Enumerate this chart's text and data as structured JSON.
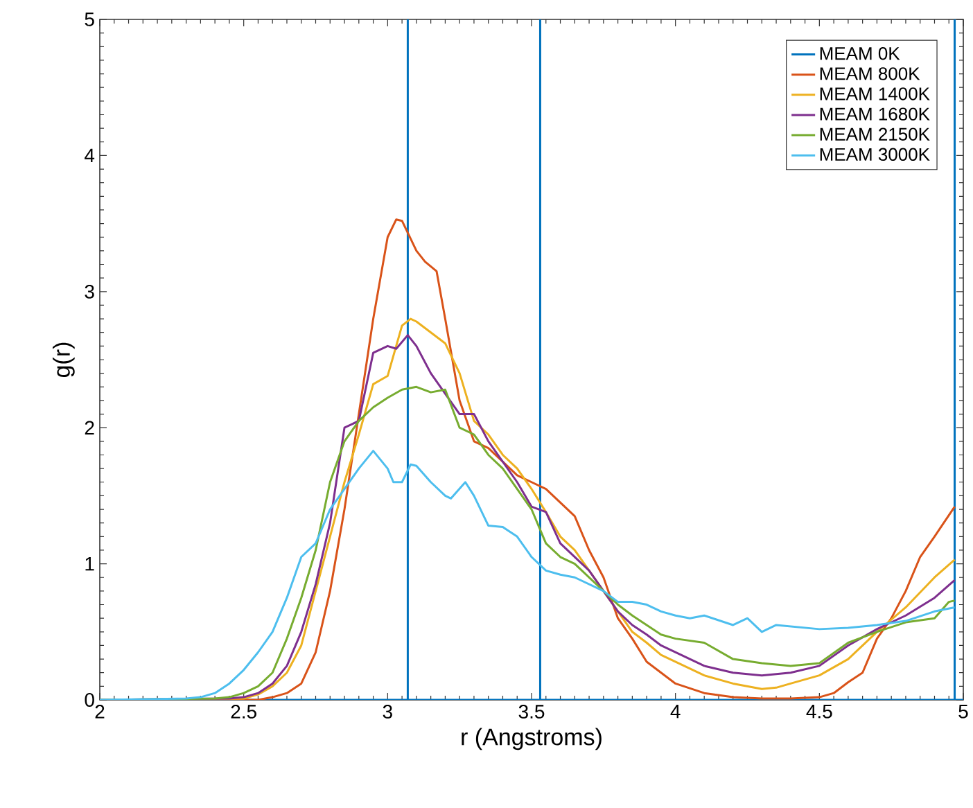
{
  "chart_data": {
    "type": "line",
    "xlabel": "r (Angstroms)",
    "ylabel": "g(r)",
    "xlim": [
      2,
      5
    ],
    "ylim": [
      0,
      5
    ],
    "xticks": [
      2,
      2.5,
      3,
      3.5,
      4,
      4.5,
      5
    ],
    "yticks": [
      0,
      1,
      2,
      3,
      4,
      5
    ],
    "legend": "top right",
    "series": [
      {
        "name": "MEAM 0K",
        "color": "#0072bd",
        "x": [
          2,
          3.07,
          3.07,
          3.07,
          3.53,
          3.53,
          3.53,
          4.97,
          4.97,
          4.97,
          5
        ],
        "values": [
          0,
          0,
          5,
          0,
          0,
          5,
          0,
          0,
          5,
          0,
          0
        ]
      },
      {
        "name": "MEAM 800K",
        "color": "#d95319",
        "x": [
          2,
          2.55,
          2.6,
          2.65,
          2.7,
          2.75,
          2.8,
          2.85,
          2.9,
          2.95,
          3.0,
          3.03,
          3.05,
          3.1,
          3.13,
          3.17,
          3.2,
          3.25,
          3.3,
          3.35,
          3.4,
          3.45,
          3.5,
          3.55,
          3.6,
          3.65,
          3.7,
          3.75,
          3.8,
          3.85,
          3.9,
          3.95,
          4.0,
          4.1,
          4.2,
          4.3,
          4.4,
          4.5,
          4.55,
          4.6,
          4.65,
          4.7,
          4.75,
          4.8,
          4.85,
          4.9,
          4.97
        ],
        "values": [
          0,
          0,
          0.02,
          0.05,
          0.12,
          0.35,
          0.8,
          1.4,
          2.1,
          2.8,
          3.4,
          3.53,
          3.52,
          3.3,
          3.22,
          3.15,
          2.8,
          2.2,
          1.9,
          1.85,
          1.75,
          1.65,
          1.6,
          1.55,
          1.45,
          1.35,
          1.1,
          0.9,
          0.6,
          0.45,
          0.28,
          0.2,
          0.12,
          0.05,
          0.02,
          0.01,
          0.01,
          0.02,
          0.05,
          0.13,
          0.2,
          0.45,
          0.6,
          0.8,
          1.05,
          1.2,
          1.42
        ]
      },
      {
        "name": "MEAM 1400K",
        "color": "#edb120",
        "x": [
          2,
          2.5,
          2.55,
          2.6,
          2.65,
          2.7,
          2.75,
          2.8,
          2.85,
          2.9,
          2.95,
          3.0,
          3.05,
          3.08,
          3.1,
          3.15,
          3.2,
          3.25,
          3.3,
          3.35,
          3.4,
          3.45,
          3.5,
          3.55,
          3.6,
          3.65,
          3.7,
          3.75,
          3.8,
          3.85,
          3.9,
          3.95,
          4.0,
          4.1,
          4.2,
          4.3,
          4.35,
          4.4,
          4.5,
          4.6,
          4.7,
          4.8,
          4.9,
          4.97
        ],
        "values": [
          0,
          0.01,
          0.04,
          0.1,
          0.2,
          0.4,
          0.8,
          1.2,
          1.6,
          1.95,
          2.32,
          2.38,
          2.75,
          2.8,
          2.78,
          2.7,
          2.62,
          2.4,
          2.05,
          1.95,
          1.8,
          1.7,
          1.55,
          1.38,
          1.2,
          1.1,
          0.95,
          0.8,
          0.65,
          0.5,
          0.42,
          0.33,
          0.28,
          0.18,
          0.12,
          0.08,
          0.09,
          0.12,
          0.18,
          0.3,
          0.5,
          0.68,
          0.9,
          1.03
        ]
      },
      {
        "name": "MEAM 1680K",
        "color": "#7e2f8e",
        "x": [
          2,
          2.45,
          2.5,
          2.55,
          2.6,
          2.65,
          2.7,
          2.75,
          2.8,
          2.85,
          2.9,
          2.95,
          3.0,
          3.03,
          3.07,
          3.1,
          3.15,
          3.2,
          3.25,
          3.3,
          3.35,
          3.4,
          3.45,
          3.5,
          3.55,
          3.6,
          3.65,
          3.7,
          3.75,
          3.8,
          3.85,
          3.9,
          3.95,
          4.0,
          4.1,
          4.2,
          4.3,
          4.4,
          4.5,
          4.6,
          4.7,
          4.8,
          4.9,
          4.97
        ],
        "values": [
          0,
          0.01,
          0.02,
          0.05,
          0.12,
          0.25,
          0.5,
          0.85,
          1.3,
          2.0,
          2.05,
          2.55,
          2.6,
          2.58,
          2.68,
          2.6,
          2.4,
          2.25,
          2.1,
          2.1,
          1.9,
          1.75,
          1.6,
          1.42,
          1.38,
          1.15,
          1.05,
          0.95,
          0.8,
          0.65,
          0.55,
          0.48,
          0.4,
          0.35,
          0.25,
          0.2,
          0.18,
          0.2,
          0.25,
          0.4,
          0.52,
          0.62,
          0.75,
          0.88
        ]
      },
      {
        "name": "MEAM 2150K",
        "color": "#77ac30",
        "x": [
          2,
          2.4,
          2.45,
          2.5,
          2.55,
          2.6,
          2.65,
          2.7,
          2.75,
          2.8,
          2.85,
          2.9,
          2.95,
          3.0,
          3.05,
          3.1,
          3.15,
          3.2,
          3.25,
          3.3,
          3.35,
          3.4,
          3.45,
          3.5,
          3.55,
          3.6,
          3.65,
          3.7,
          3.75,
          3.8,
          3.85,
          3.9,
          3.95,
          4.0,
          4.1,
          4.2,
          4.3,
          4.4,
          4.5,
          4.6,
          4.7,
          4.8,
          4.9,
          4.95,
          4.97
        ],
        "values": [
          0,
          0.01,
          0.02,
          0.05,
          0.1,
          0.2,
          0.45,
          0.75,
          1.1,
          1.6,
          1.9,
          2.05,
          2.15,
          2.22,
          2.28,
          2.3,
          2.26,
          2.28,
          2.0,
          1.95,
          1.8,
          1.7,
          1.55,
          1.4,
          1.15,
          1.05,
          1.0,
          0.9,
          0.8,
          0.7,
          0.62,
          0.55,
          0.48,
          0.45,
          0.42,
          0.3,
          0.27,
          0.25,
          0.27,
          0.42,
          0.5,
          0.57,
          0.6,
          0.72,
          0.73
        ]
      },
      {
        "name": "MEAM 3000K",
        "color": "#4dbeee",
        "x": [
          2,
          2.3,
          2.35,
          2.4,
          2.45,
          2.5,
          2.55,
          2.6,
          2.65,
          2.7,
          2.75,
          2.8,
          2.85,
          2.9,
          2.95,
          3.0,
          3.02,
          3.05,
          3.08,
          3.1,
          3.15,
          3.2,
          3.22,
          3.27,
          3.3,
          3.35,
          3.4,
          3.45,
          3.5,
          3.55,
          3.6,
          3.65,
          3.7,
          3.75,
          3.8,
          3.85,
          3.9,
          3.95,
          4.0,
          4.05,
          4.1,
          4.2,
          4.25,
          4.3,
          4.35,
          4.5,
          4.6,
          4.7,
          4.8,
          4.9,
          4.97
        ],
        "values": [
          0,
          0.01,
          0.02,
          0.05,
          0.12,
          0.22,
          0.35,
          0.5,
          0.75,
          1.05,
          1.15,
          1.4,
          1.55,
          1.7,
          1.83,
          1.7,
          1.6,
          1.6,
          1.73,
          1.72,
          1.6,
          1.5,
          1.48,
          1.6,
          1.5,
          1.28,
          1.27,
          1.2,
          1.05,
          0.95,
          0.92,
          0.9,
          0.85,
          0.8,
          0.72,
          0.72,
          0.7,
          0.65,
          0.62,
          0.6,
          0.62,
          0.55,
          0.6,
          0.5,
          0.55,
          0.52,
          0.53,
          0.55,
          0.58,
          0.65,
          0.68
        ]
      }
    ]
  }
}
